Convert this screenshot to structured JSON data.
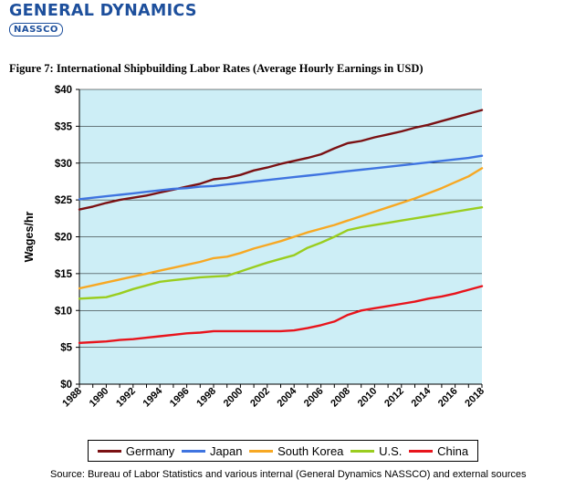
{
  "header": {
    "logo_main": "GENERAL DYNAMICS",
    "logo_sub": "NASSCO"
  },
  "figure_title": "Figure 7: International Shipbuilding Labor Rates (Average Hourly Earnings in USD)",
  "source_note": "Source: Bureau of Labor Statistics and various internal (General Dynamics NASSCO) and external sources",
  "colors": {
    "brand": "#1d4f9c",
    "plot_background": "#cdeef6",
    "gridline": "#000000"
  },
  "chart_data": {
    "type": "line",
    "title": "Figure 7: International Shipbuilding Labor Rates (Average Hourly Earnings in USD)",
    "xlabel": "",
    "ylabel": "Wages/hr",
    "ylim": [
      0,
      40
    ],
    "xlim": [
      1988,
      2018
    ],
    "grid": true,
    "legend_position": "bottom",
    "y_ticks": [
      {
        "value": 0,
        "label": "$0"
      },
      {
        "value": 5,
        "label": "$5"
      },
      {
        "value": 10,
        "label": "$10"
      },
      {
        "value": 15,
        "label": "$15"
      },
      {
        "value": 20,
        "label": "$20"
      },
      {
        "value": 25,
        "label": "$25"
      },
      {
        "value": 30,
        "label": "$30"
      },
      {
        "value": 35,
        "label": "$35"
      },
      {
        "value": 40,
        "label": "$40"
      }
    ],
    "x_ticks": [
      {
        "value": 1988,
        "label": "1988"
      },
      {
        "value": 1990,
        "label": "1990"
      },
      {
        "value": 1992,
        "label": "1992"
      },
      {
        "value": 1994,
        "label": "1994"
      },
      {
        "value": 1996,
        "label": "1996"
      },
      {
        "value": 1998,
        "label": "1998"
      },
      {
        "value": 2000,
        "label": "2000"
      },
      {
        "value": 2002,
        "label": "2002"
      },
      {
        "value": 2004,
        "label": "2004"
      },
      {
        "value": 2006,
        "label": "2006"
      },
      {
        "value": 2008,
        "label": "2008"
      },
      {
        "value": 2010,
        "label": "2010"
      },
      {
        "value": 2012,
        "label": "2012"
      },
      {
        "value": 2014,
        "label": "2014"
      },
      {
        "value": 2016,
        "label": "2016"
      },
      {
        "value": 2018,
        "label": "2018"
      }
    ],
    "x": [
      1988,
      1989,
      1990,
      1991,
      1992,
      1993,
      1994,
      1995,
      1996,
      1997,
      1998,
      1999,
      2000,
      2001,
      2002,
      2003,
      2004,
      2005,
      2006,
      2007,
      2008,
      2009,
      2010,
      2011,
      2012,
      2013,
      2014,
      2015,
      2016,
      2017,
      2018
    ],
    "series": [
      {
        "name": "Germany",
        "color": "#7b1113",
        "values": [
          23.7,
          24.1,
          24.6,
          25.0,
          25.3,
          25.6,
          26.0,
          26.4,
          26.8,
          27.2,
          27.8,
          28.0,
          28.4,
          29.0,
          29.4,
          29.9,
          30.3,
          30.7,
          31.2,
          32.0,
          32.7,
          33.0,
          33.5,
          33.9,
          34.3,
          34.8,
          35.2,
          35.7,
          36.2,
          36.7,
          37.2
        ]
      },
      {
        "name": "Japan",
        "color": "#3f74e0",
        "values": [
          25.1,
          25.3,
          25.5,
          25.7,
          25.9,
          26.1,
          26.3,
          26.5,
          26.6,
          26.8,
          26.9,
          27.1,
          27.3,
          27.5,
          27.7,
          27.9,
          28.1,
          28.3,
          28.5,
          28.7,
          28.9,
          29.1,
          29.3,
          29.5,
          29.7,
          29.9,
          30.1,
          30.3,
          30.5,
          30.7,
          31.0
        ]
      },
      {
        "name": "South Korea",
        "color": "#f7a823",
        "values": [
          13.0,
          13.4,
          13.8,
          14.2,
          14.6,
          15.0,
          15.4,
          15.8,
          16.2,
          16.6,
          17.1,
          17.3,
          17.8,
          18.4,
          18.9,
          19.4,
          20.0,
          20.6,
          21.1,
          21.6,
          22.2,
          22.8,
          23.4,
          24.0,
          24.6,
          25.2,
          25.9,
          26.6,
          27.4,
          28.2,
          29.3
        ]
      },
      {
        "name": "U.S.",
        "color": "#9acd1f",
        "values": [
          11.6,
          11.7,
          11.8,
          12.3,
          12.9,
          13.4,
          13.9,
          14.1,
          14.3,
          14.5,
          14.6,
          14.7,
          15.3,
          15.9,
          16.5,
          17.0,
          17.5,
          18.5,
          19.2,
          20.0,
          20.9,
          21.3,
          21.6,
          21.9,
          22.2,
          22.5,
          22.8,
          23.1,
          23.4,
          23.7,
          24.0
        ]
      },
      {
        "name": "China",
        "color": "#e8141c",
        "values": [
          5.6,
          5.7,
          5.8,
          6.0,
          6.1,
          6.3,
          6.5,
          6.7,
          6.9,
          7.0,
          7.2,
          7.2,
          7.2,
          7.2,
          7.2,
          7.2,
          7.3,
          7.6,
          8.0,
          8.5,
          9.4,
          10.0,
          10.3,
          10.6,
          10.9,
          11.2,
          11.6,
          11.9,
          12.3,
          12.8,
          13.3
        ]
      }
    ]
  }
}
